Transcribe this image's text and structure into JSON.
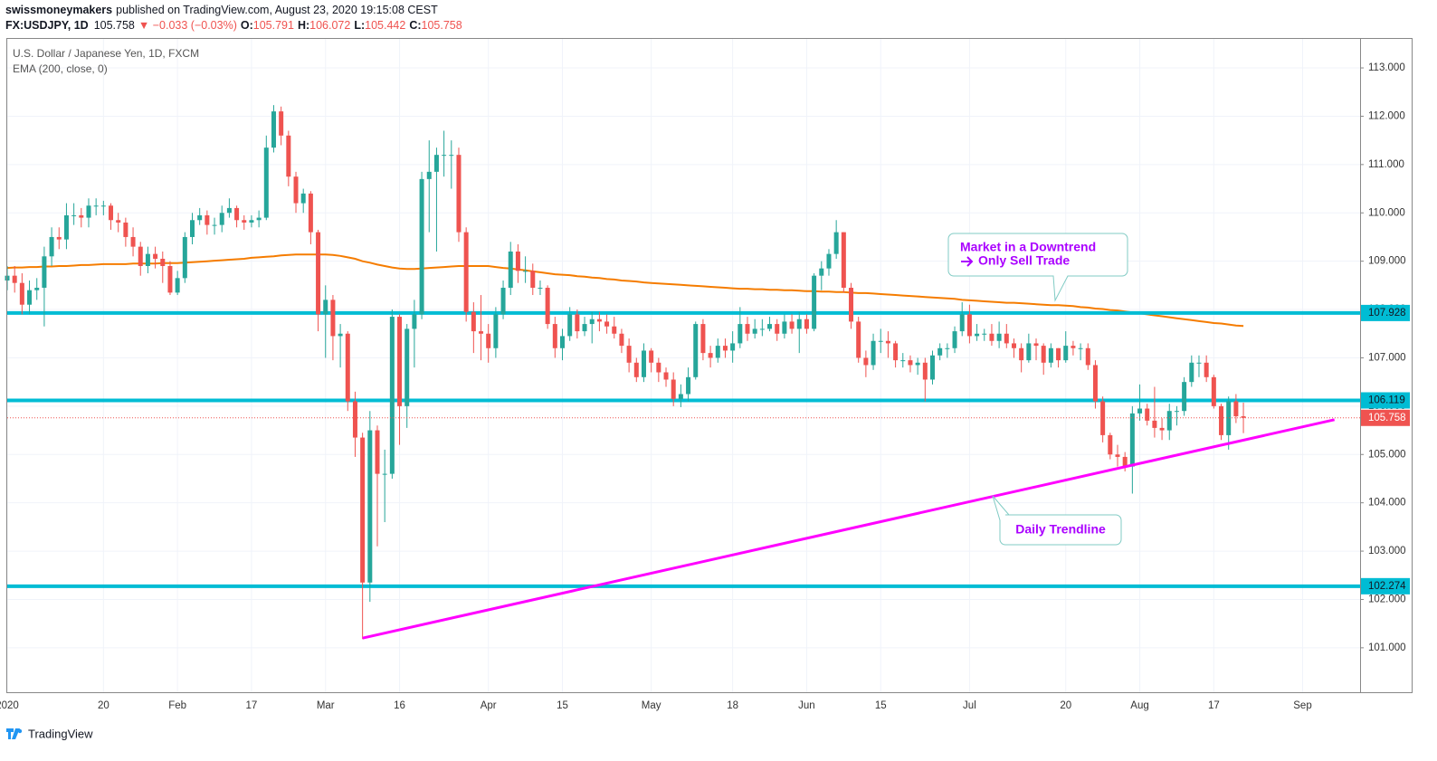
{
  "header": {
    "author": "swissmoneymakers",
    "published": "published on TradingView.com, August 23, 2020 19:15:08 CEST",
    "symbol": "FX:USDJPY, 1D",
    "change": "▼ −0.033 (−0.03%)",
    "ohlc_prefixes": [
      "O:",
      "H:",
      "L:",
      "C:"
    ]
  },
  "footer": {
    "brand": "TradingView"
  },
  "chart_data": {
    "type": "candlestick",
    "title": "U.S. Dollar / Japanese Yen, 1D, FXCM",
    "indicator": {
      "name": "EMA (200, close, 0)",
      "color": "#f57c00",
      "values": [
        108.86,
        108.87,
        108.87,
        108.88,
        108.88,
        108.89,
        108.89,
        108.9,
        108.9,
        108.91,
        108.92,
        108.92,
        108.93,
        108.94,
        108.94,
        108.94,
        108.94,
        108.95,
        108.95,
        108.95,
        108.95,
        108.96,
        108.96,
        108.96,
        108.97,
        108.98,
        108.99,
        109.0,
        109.01,
        109.02,
        109.03,
        109.04,
        109.05,
        109.07,
        109.08,
        109.09,
        109.1,
        109.12,
        109.13,
        109.14,
        109.14,
        109.14,
        109.14,
        109.14,
        109.13,
        109.11,
        109.08,
        109.05,
        109.0,
        108.97,
        108.93,
        108.9,
        108.87,
        108.85,
        108.84,
        108.84,
        108.85,
        108.86,
        108.87,
        108.88,
        108.89,
        108.9,
        108.9,
        108.9,
        108.9,
        108.9,
        108.88,
        108.86,
        108.85,
        108.83,
        108.81,
        108.79,
        108.77,
        108.75,
        108.73,
        108.72,
        108.71,
        108.69,
        108.68,
        108.66,
        108.65,
        108.63,
        108.62,
        108.6,
        108.59,
        108.58,
        108.56,
        108.55,
        108.54,
        108.53,
        108.52,
        108.51,
        108.5,
        108.49,
        108.48,
        108.47,
        108.46,
        108.45,
        108.44,
        108.43,
        108.43,
        108.42,
        108.42,
        108.41,
        108.41,
        108.4,
        108.4,
        108.39,
        108.38,
        108.38,
        108.37,
        108.37,
        108.36,
        108.36,
        108.35,
        108.34,
        108.34,
        108.33,
        108.32,
        108.31,
        108.3,
        108.29,
        108.28,
        108.27,
        108.26,
        108.25,
        108.24,
        108.23,
        108.22,
        108.2,
        108.19,
        108.18,
        108.17,
        108.16,
        108.15,
        108.14,
        108.14,
        108.13,
        108.12,
        108.11,
        108.1,
        108.09,
        108.09,
        108.08,
        108.07,
        108.05,
        108.04,
        108.02,
        108.01,
        107.99,
        107.98,
        107.96,
        107.94,
        107.92,
        107.9,
        107.88,
        107.86,
        107.84,
        107.82,
        107.8,
        107.78,
        107.76,
        107.74,
        107.72,
        107.71,
        107.69,
        107.67,
        107.66,
        null,
        null,
        null,
        null,
        null,
        null,
        null,
        null
      ]
    },
    "categories": [
      "2020",
      null,
      null,
      null,
      null,
      null,
      null,
      null,
      null,
      null,
      null,
      null,
      null,
      "20",
      null,
      null,
      null,
      null,
      null,
      null,
      null,
      null,
      null,
      "Feb",
      null,
      null,
      null,
      null,
      null,
      null,
      null,
      null,
      null,
      "17",
      null,
      null,
      null,
      null,
      null,
      null,
      null,
      null,
      null,
      "Mar",
      null,
      null,
      null,
      null,
      null,
      null,
      null,
      null,
      null,
      "16",
      null,
      null,
      null,
      null,
      null,
      null,
      null,
      null,
      null,
      null,
      null,
      "Apr",
      null,
      null,
      null,
      null,
      null,
      null,
      null,
      null,
      null,
      "15",
      null,
      null,
      null,
      null,
      null,
      null,
      null,
      null,
      null,
      null,
      null,
      "May",
      null,
      null,
      null,
      null,
      null,
      null,
      null,
      null,
      null,
      null,
      "18",
      null,
      null,
      null,
      null,
      null,
      null,
      null,
      null,
      null,
      "Jun",
      null,
      null,
      null,
      null,
      null,
      null,
      null,
      null,
      null,
      "15",
      null,
      null,
      null,
      null,
      null,
      null,
      null,
      null,
      null,
      null,
      null,
      "Jul",
      null,
      null,
      null,
      null,
      null,
      null,
      null,
      null,
      null,
      null,
      null,
      null,
      "20",
      null,
      null,
      null,
      null,
      null,
      null,
      null,
      null,
      null,
      "Aug",
      null,
      null,
      null,
      null,
      null,
      null,
      null,
      null,
      null,
      "17",
      null,
      null,
      null,
      null,
      null,
      null,
      null,
      null,
      null,
      null,
      null,
      "Sep"
    ],
    "open": [
      108.6,
      108.7,
      108.55,
      108.1,
      108.4,
      108.45,
      109.1,
      109.5,
      109.45,
      109.95,
      109.95,
      109.9,
      110.15,
      110.15,
      110.15,
      109.85,
      109.8,
      109.5,
      109.3,
      108.9,
      109.15,
      109.05,
      108.9,
      108.35,
      108.65,
      109.5,
      109.85,
      109.95,
      109.75,
      109.75,
      110.0,
      110.1,
      109.85,
      109.8,
      109.85,
      109.9,
      111.35,
      112.1,
      111.6,
      110.75,
      110.2,
      110.4,
      109.6,
      107.9,
      108.2,
      107.45,
      107.5,
      106.1,
      105.35,
      102.35,
      105.5,
      104.6,
      104.6,
      107.85,
      106.0,
      107.6,
      107.9,
      110.7,
      110.85,
      111.2,
      111.2,
      111.2,
      109.6,
      107.95,
      107.55,
      107.5,
      107.2,
      107.9,
      108.45,
      109.2,
      108.8,
      108.8,
      108.45,
      108.45,
      107.7,
      107.2,
      107.45,
      107.9,
      107.55,
      107.7,
      107.8,
      107.75,
      107.65,
      107.5,
      107.25,
      106.9,
      106.6,
      107.15,
      106.9,
      106.7,
      106.55,
      106.15,
      106.25,
      106.6,
      107.7,
      107.1,
      107.0,
      107.25,
      107.15,
      107.3,
      107.7,
      107.5,
      107.6,
      107.6,
      107.7,
      107.5,
      107.75,
      107.6,
      107.8,
      107.6,
      108.7,
      108.85,
      109.15,
      109.6,
      108.45,
      107.75,
      107.0,
      106.85,
      107.35,
      107.35,
      107.3,
      106.95,
      106.95,
      106.85,
      106.9,
      106.55,
      107.05,
      107.2,
      107.2,
      107.55,
      107.9,
      107.45,
      107.5,
      107.5,
      107.35,
      107.5,
      107.3,
      107.2,
      106.95,
      107.3,
      107.25,
      106.9,
      107.2,
      106.95,
      107.25,
      107.2,
      107.2,
      106.85,
      106.1,
      105.4,
      105.0,
      104.95,
      104.75,
      105.85,
      105.95,
      105.7,
      105.55,
      105.5,
      105.9,
      105.9,
      106.5,
      106.9,
      106.9,
      106.6,
      106.0,
      105.4,
      106.1,
      105.791,
      null,
      null,
      null,
      null,
      null,
      null,
      null,
      null
    ],
    "high": [
      108.9,
      108.9,
      108.75,
      108.6,
      108.65,
      109.3,
      109.7,
      109.7,
      110.2,
      110.2,
      110.1,
      110.3,
      110.3,
      110.25,
      110.2,
      110.0,
      109.9,
      109.7,
      109.4,
      109.3,
      109.3,
      109.2,
      109.0,
      108.8,
      109.6,
      110.0,
      110.1,
      110.05,
      109.9,
      110.15,
      110.3,
      110.15,
      109.95,
      109.95,
      110.05,
      111.6,
      112.23,
      112.2,
      111.7,
      110.85,
      110.5,
      110.45,
      109.65,
      108.5,
      108.3,
      107.7,
      107.55,
      106.3,
      105.45,
      105.9,
      105.6,
      105.1,
      108.0,
      107.9,
      107.7,
      108.2,
      110.85,
      111.5,
      111.35,
      111.7,
      111.5,
      111.35,
      109.7,
      108.15,
      108.3,
      107.7,
      108.05,
      108.6,
      109.4,
      109.35,
      109.1,
      108.95,
      108.6,
      108.5,
      107.85,
      107.6,
      108.05,
      108.0,
      107.85,
      107.95,
      107.95,
      107.9,
      107.85,
      107.6,
      107.4,
      107.0,
      107.3,
      107.2,
      107.0,
      106.8,
      106.7,
      106.45,
      106.8,
      107.75,
      107.8,
      107.25,
      107.4,
      107.4,
      107.55,
      108.05,
      107.85,
      107.8,
      107.8,
      107.85,
      107.8,
      107.9,
      107.9,
      107.95,
      107.9,
      108.75,
      109.0,
      109.25,
      109.85,
      109.6,
      108.55,
      107.85,
      107.15,
      107.5,
      107.6,
      107.55,
      107.35,
      107.1,
      107.05,
      107.0,
      107.0,
      107.15,
      107.3,
      107.3,
      107.65,
      108.15,
      108.1,
      107.7,
      107.6,
      107.7,
      107.75,
      107.7,
      107.4,
      107.3,
      107.5,
      107.4,
      107.3,
      107.3,
      107.2,
      107.55,
      107.35,
      107.3,
      107.3,
      106.95,
      106.2,
      105.45,
      105.2,
      105.05,
      106.0,
      106.45,
      106.05,
      106.4,
      105.75,
      106.05,
      106.0,
      106.6,
      107.05,
      107.05,
      107.05,
      106.65,
      106.05,
      106.2,
      106.25,
      106.072,
      null,
      null,
      null,
      null,
      null,
      null,
      null,
      null
    ],
    "low": [
      108.4,
      108.35,
      107.9,
      107.9,
      108.2,
      107.65,
      108.9,
      109.25,
      109.25,
      109.75,
      109.7,
      109.7,
      109.95,
      109.95,
      109.65,
      109.6,
      109.3,
      109.1,
      108.7,
      108.75,
      108.85,
      108.55,
      108.3,
      108.3,
      108.55,
      109.35,
      109.75,
      109.55,
      109.55,
      109.6,
      109.9,
      109.7,
      109.65,
      109.7,
      109.7,
      109.85,
      111.25,
      111.4,
      110.55,
      110.0,
      110.0,
      109.35,
      107.55,
      107.0,
      106.95,
      106.8,
      105.9,
      104.95,
      101.18,
      101.95,
      103.1,
      103.6,
      104.5,
      105.2,
      105.55,
      106.8,
      107.8,
      109.6,
      109.2,
      110.75,
      110.5,
      109.4,
      107.75,
      107.1,
      106.95,
      106.9,
      107.0,
      107.8,
      108.3,
      108.55,
      108.55,
      108.3,
      108.3,
      107.6,
      107.0,
      106.95,
      107.35,
      107.4,
      107.45,
      107.3,
      107.55,
      107.5,
      107.4,
      107.1,
      106.7,
      106.5,
      106.5,
      106.7,
      106.5,
      106.4,
      106.0,
      105.98,
      106.1,
      106.55,
      106.95,
      106.8,
      106.9,
      107.0,
      106.9,
      107.2,
      107.35,
      107.4,
      107.45,
      107.55,
      107.35,
      107.4,
      107.5,
      107.1,
      107.5,
      107.55,
      108.4,
      108.7,
      109.05,
      108.35,
      107.6,
      106.9,
      106.6,
      106.75,
      107.1,
      107.0,
      106.8,
      106.8,
      106.7,
      106.65,
      106.1,
      106.45,
      106.95,
      107.0,
      107.1,
      107.45,
      107.3,
      107.35,
      107.35,
      107.25,
      107.2,
      107.2,
      107.0,
      106.7,
      106.9,
      106.95,
      106.65,
      106.8,
      106.8,
      106.9,
      107.05,
      106.95,
      106.75,
      105.95,
      105.25,
      104.9,
      104.75,
      104.65,
      104.19,
      105.7,
      105.6,
      105.35,
      105.3,
      105.3,
      105.6,
      105.8,
      106.4,
      106.6,
      106.5,
      105.95,
      105.3,
      105.1,
      105.65,
      105.442,
      null,
      null,
      null,
      null,
      null,
      null,
      null,
      null
    ],
    "close": [
      108.7,
      108.55,
      108.1,
      108.4,
      108.45,
      109.1,
      109.5,
      109.45,
      109.95,
      109.95,
      109.9,
      110.15,
      110.15,
      110.15,
      109.85,
      109.8,
      109.5,
      109.3,
      108.9,
      109.15,
      109.05,
      108.9,
      108.35,
      108.65,
      109.5,
      109.85,
      109.95,
      109.75,
      109.75,
      110.0,
      110.1,
      109.85,
      109.8,
      109.85,
      109.9,
      111.35,
      112.1,
      111.6,
      110.75,
      110.2,
      110.4,
      109.6,
      107.9,
      108.2,
      107.45,
      107.5,
      106.1,
      105.35,
      102.35,
      105.5,
      104.6,
      104.6,
      107.85,
      106.0,
      107.6,
      107.9,
      110.7,
      110.85,
      111.2,
      111.2,
      111.2,
      109.6,
      107.95,
      107.55,
      107.5,
      107.2,
      107.9,
      108.45,
      109.2,
      108.8,
      108.8,
      108.45,
      108.45,
      107.7,
      107.2,
      107.45,
      107.9,
      107.55,
      107.7,
      107.8,
      107.75,
      107.65,
      107.5,
      107.25,
      106.9,
      106.6,
      107.15,
      106.9,
      106.7,
      106.55,
      106.15,
      106.25,
      106.6,
      107.7,
      107.1,
      107.0,
      107.25,
      107.15,
      107.3,
      107.7,
      107.5,
      107.6,
      107.6,
      107.7,
      107.5,
      107.75,
      107.6,
      107.8,
      107.6,
      108.7,
      108.85,
      109.15,
      109.6,
      108.45,
      107.75,
      107.0,
      106.85,
      107.35,
      107.35,
      107.3,
      106.95,
      106.95,
      106.85,
      106.9,
      106.55,
      107.05,
      107.2,
      107.2,
      107.55,
      107.9,
      107.45,
      107.5,
      107.5,
      107.35,
      107.5,
      107.3,
      107.2,
      106.95,
      107.3,
      107.25,
      106.9,
      107.2,
      106.95,
      107.25,
      107.2,
      107.2,
      106.85,
      106.1,
      105.4,
      105.0,
      104.95,
      104.75,
      105.85,
      105.95,
      105.7,
      105.55,
      105.5,
      105.9,
      105.9,
      106.5,
      106.9,
      106.9,
      106.6,
      106.0,
      105.4,
      106.1,
      105.79,
      105.758,
      null,
      null,
      null,
      null,
      null,
      null,
      null,
      null
    ],
    "up_color": "#26a69a",
    "down_color": "#ef5350",
    "ylim": [
      100.08,
      113.6
    ],
    "yticks": [
      {
        "value": 101,
        "label": "101.000"
      },
      {
        "value": 102,
        "label": "102.000"
      },
      {
        "value": 103,
        "label": "103.000"
      },
      {
        "value": 104,
        "label": "104.000"
      },
      {
        "value": 105,
        "label": "105.000"
      },
      {
        "value": 106,
        "label": "106.000"
      },
      {
        "value": 107,
        "label": "107.000"
      },
      {
        "value": 108,
        "label": "108.000"
      },
      {
        "value": 109,
        "label": "109.000"
      },
      {
        "value": 110,
        "label": "110.000"
      },
      {
        "value": 111,
        "label": "111.000"
      },
      {
        "value": 112,
        "label": "112.000"
      },
      {
        "value": 113,
        "label": "113.000"
      }
    ],
    "grid": true,
    "levels": [
      107.928,
      106.119,
      102.274
    ],
    "level_color": "#00bcd4",
    "trendline": {
      "start": 101.2,
      "end": 105.72,
      "color": "#ff00ff",
      "label": "Daily Trendline"
    },
    "annotations": [
      "Market in a Downtrend",
      "Only Sell Trade"
    ],
    "annotation_color": "#aa00ff"
  }
}
